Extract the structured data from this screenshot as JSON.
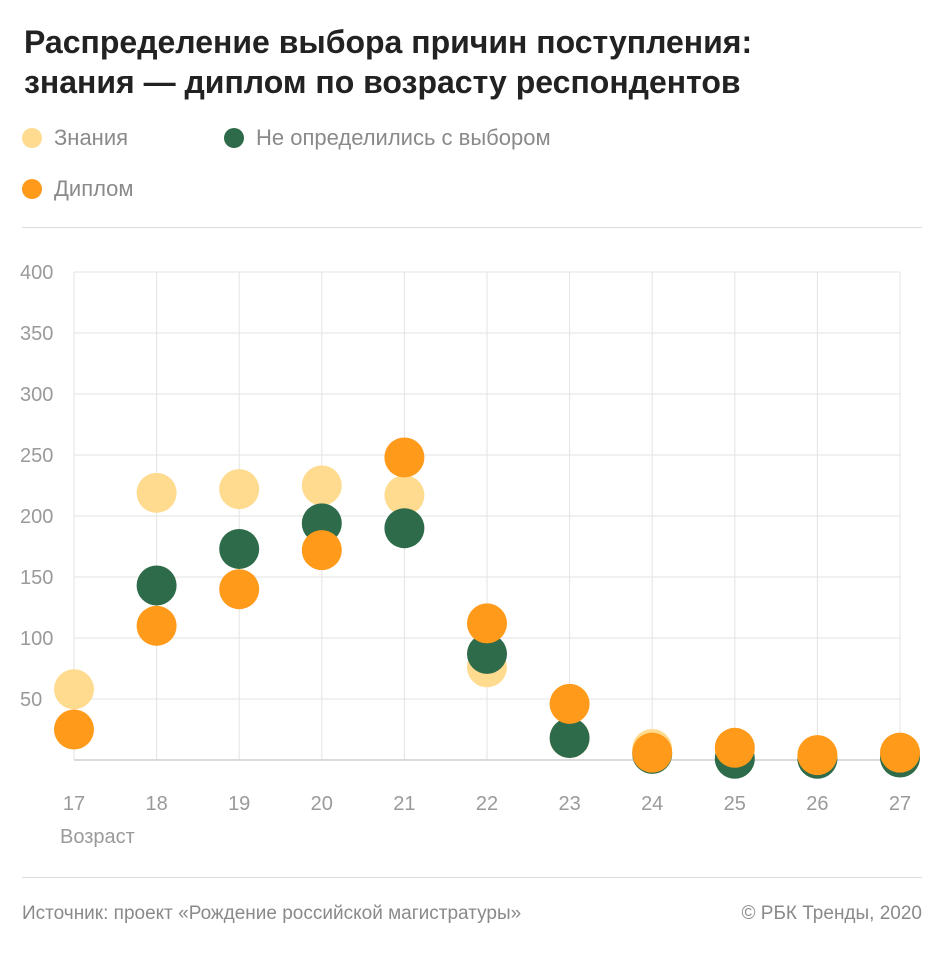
{
  "header": {
    "title_line1": "Распределение выбора причин поступления:",
    "title_line2": "знания — диплом по возрасту респондентов"
  },
  "legend": {
    "items": [
      {
        "label": "Знания",
        "color": "#FFDB8F"
      },
      {
        "label": "Не определились с выбором",
        "color": "#2E6B4A"
      },
      {
        "label": "Диплом",
        "color": "#FF9A1A"
      }
    ]
  },
  "chart_data": {
    "type": "scatter",
    "xlabel": "Возраст",
    "ylabel": "",
    "x": [
      17,
      18,
      19,
      20,
      21,
      22,
      23,
      24,
      25,
      26,
      27
    ],
    "ylim": [
      0,
      400
    ],
    "yticks": [
      50,
      100,
      150,
      200,
      250,
      300,
      350,
      400
    ],
    "grid": true,
    "legend_position": "top-left",
    "series": [
      {
        "name": "Знания",
        "color": "#FFDB8F",
        "values": [
          58,
          219,
          222,
          225,
          217,
          76,
          18,
          9,
          7,
          4,
          5
        ]
      },
      {
        "name": "Не определились с выбором",
        "color": "#2E6B4A",
        "values": [
          null,
          143,
          173,
          194,
          190,
          87,
          18,
          5,
          1,
          1,
          2
        ]
      },
      {
        "name": "Диплом",
        "color": "#FF9A1A",
        "values": [
          25,
          110,
          140,
          172,
          248,
          112,
          46,
          6,
          10,
          4,
          6
        ]
      }
    ]
  },
  "footer": {
    "source": "Источник: проект «Рождение российской магистратуры»",
    "copyright": "© РБК Тренды, 2020"
  }
}
